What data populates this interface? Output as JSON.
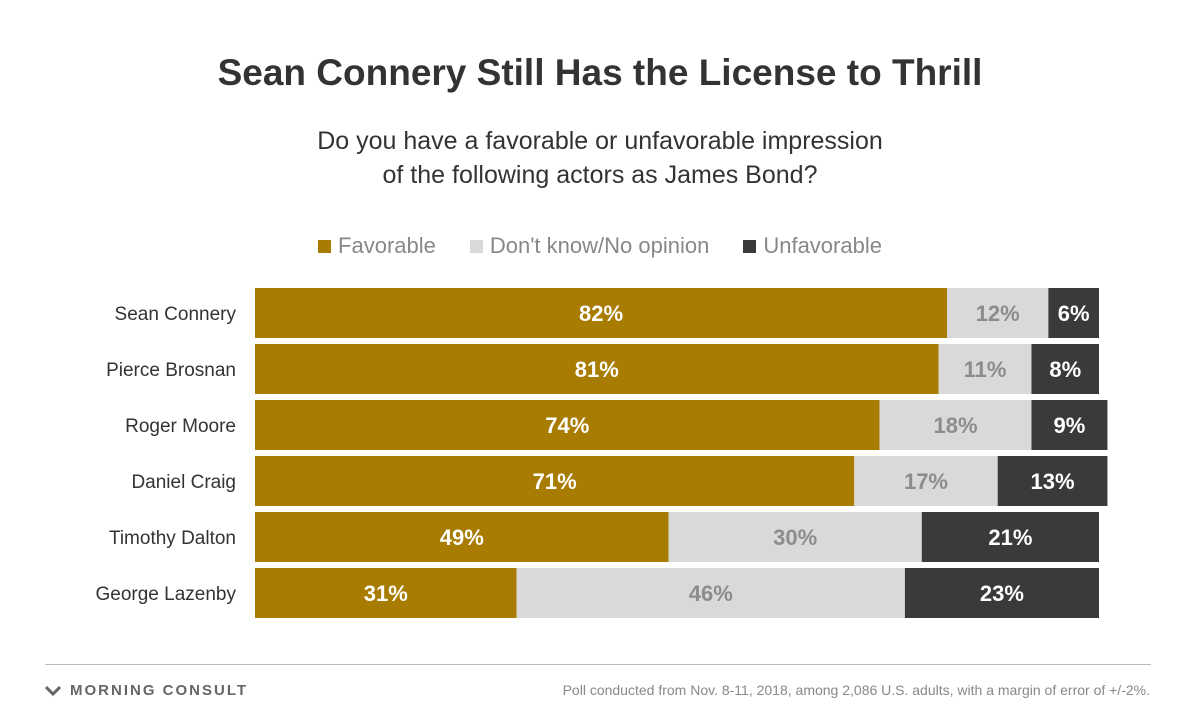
{
  "brand": {
    "name": "MORNING CONSULT",
    "icon": "mc-chevron-logo-icon"
  },
  "footer": {
    "note": "Poll conducted from Nov. 8-11, 2018, among 2,086 U.S. adults, with a margin of error of +/-2%."
  },
  "colors": {
    "favorable": "#a87c00",
    "neutral": "#d9d9d9",
    "unfavorable": "#3a3a3a",
    "label_on_dark": "#ffffff",
    "label_on_light": "#8c8c8c",
    "text": "#333333"
  },
  "chart_data": {
    "type": "bar",
    "orientation": "horizontal",
    "stacked": true,
    "title": "Sean Connery Still Has the License to Thrill",
    "subtitle_lines": [
      "Do you have a favorable or unfavorable impression",
      "of the following actors as James Bond?"
    ],
    "legend_position": "top",
    "value_suffix": "%",
    "xlim": [
      0,
      100
    ],
    "categories": [
      "Sean Connery",
      "Pierce Brosnan",
      "Roger Moore",
      "Daniel Craig",
      "Timothy Dalton",
      "George Lazenby"
    ],
    "series": [
      {
        "name": "Favorable",
        "values": [
          82,
          81,
          74,
          71,
          49,
          31
        ]
      },
      {
        "name": "Don't know/No opinion",
        "values": [
          12,
          11,
          18,
          17,
          30,
          46
        ]
      },
      {
        "name": "Unfavorable",
        "values": [
          6,
          8,
          9,
          13,
          21,
          23
        ]
      }
    ]
  }
}
